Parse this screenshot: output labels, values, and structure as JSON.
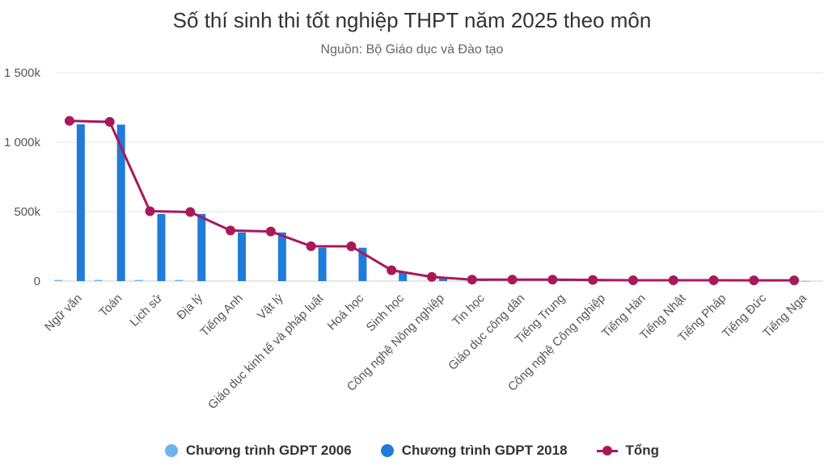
{
  "chart_data": {
    "type": "bar",
    "title": "Số thí sinh thi tốt nghiệp THPT năm 2025 theo môn",
    "subtitle": "Nguồn: Bộ Giáo dục và Đào tạo",
    "categories": [
      "Ngữ văn",
      "Toán",
      "Lịch sử",
      "Địa lý",
      "Tiếng Anh",
      "Vật lý",
      "Giáo dục kinh tế và pháp luật",
      "Hoá học",
      "Sinh học",
      "Công nghệ Nông nghiệp",
      "Tin học",
      "Giáo dục công dân",
      "Tiếng Trung",
      "Công nghệ Công nghiệp",
      "Tiếng Hàn",
      "Tiếng Nhật",
      "Tiếng Pháp",
      "Tiếng Đức",
      "Tiếng Nga"
    ],
    "series": [
      {
        "name": "Chương trình GDPT 2006",
        "kind": "bar",
        "color": "#6ab4f0",
        "values": [
          8000,
          8000,
          8000,
          8000,
          0,
          0,
          0,
          0,
          0,
          0,
          0,
          0,
          0,
          0,
          0,
          0,
          0,
          0,
          0
        ]
      },
      {
        "name": "Chương trình GDPT 2018",
        "kind": "bar",
        "color": "#1f7cd8",
        "values": [
          1128000,
          1126000,
          483000,
          483000,
          350000,
          350000,
          240000,
          240000,
          65000,
          20000,
          4000,
          0,
          3000,
          1000,
          500,
          500,
          300,
          200,
          100
        ]
      },
      {
        "name": "Tổng",
        "kind": "line",
        "color": "#a8195a",
        "values": [
          1153000,
          1146000,
          503000,
          497000,
          364000,
          357000,
          251000,
          250000,
          78000,
          30000,
          10000,
          10000,
          10000,
          8000,
          6000,
          6000,
          6000,
          5000,
          5000
        ]
      }
    ],
    "ylim": [
      0,
      1500000
    ],
    "yticks": [
      {
        "value": 0,
        "label": "0"
      },
      {
        "value": 500000,
        "label": "500k"
      },
      {
        "value": 1000000,
        "label": "1 000k"
      },
      {
        "value": 1500000,
        "label": "1 500k"
      }
    ],
    "grid": true,
    "legend_position": "bottom"
  }
}
